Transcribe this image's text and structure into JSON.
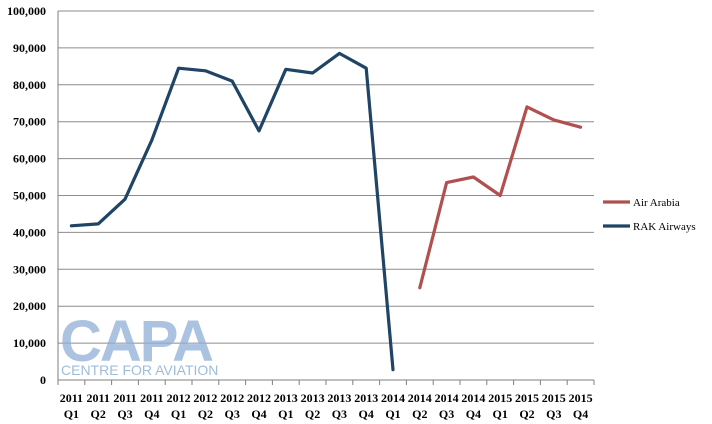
{
  "chart_data": {
    "type": "line",
    "title": "",
    "xlabel": "",
    "ylabel": "",
    "ylim": [
      0,
      100000
    ],
    "yticks": [
      "0",
      "10,000",
      "20,000",
      "30,000",
      "40,000",
      "50,000",
      "60,000",
      "70,000",
      "80,000",
      "90,000",
      "100,000"
    ],
    "grid": "horizontal",
    "legend_position": "right",
    "categories": [
      {
        "year": "2011",
        "quarter": "Q1"
      },
      {
        "year": "2011",
        "quarter": "Q2"
      },
      {
        "year": "2011",
        "quarter": "Q3"
      },
      {
        "year": "2011",
        "quarter": "Q4"
      },
      {
        "year": "2012",
        "quarter": "Q1"
      },
      {
        "year": "2012",
        "quarter": "Q2"
      },
      {
        "year": "2012",
        "quarter": "Q3"
      },
      {
        "year": "2012",
        "quarter": "Q4"
      },
      {
        "year": "2013",
        "quarter": "Q1"
      },
      {
        "year": "2013",
        "quarter": "Q2"
      },
      {
        "year": "2013",
        "quarter": "Q3"
      },
      {
        "year": "2013",
        "quarter": "Q4"
      },
      {
        "year": "2014",
        "quarter": "Q1"
      },
      {
        "year": "2014",
        "quarter": "Q2"
      },
      {
        "year": "2014",
        "quarter": "Q3"
      },
      {
        "year": "2014",
        "quarter": "Q4"
      },
      {
        "year": "2015",
        "quarter": "Q1"
      },
      {
        "year": "2015",
        "quarter": "Q2"
      },
      {
        "year": "2015",
        "quarter": "Q3"
      },
      {
        "year": "2015",
        "quarter": "Q4"
      }
    ],
    "series": [
      {
        "name": "Air Arabia",
        "color": "#b0504f",
        "values": [
          null,
          null,
          null,
          null,
          null,
          null,
          null,
          null,
          null,
          null,
          null,
          null,
          null,
          25000,
          53500,
          55000,
          50000,
          74000,
          70500,
          68500
        ]
      },
      {
        "name": "RAK Airways",
        "color": "#1f4466",
        "values": [
          41800,
          42300,
          49000,
          65000,
          84500,
          83800,
          81000,
          67500,
          84200,
          83200,
          88500,
          84500,
          2800,
          null,
          null,
          null,
          null,
          null,
          null,
          null
        ]
      }
    ]
  },
  "watermark": {
    "logo_text": "CAPA",
    "tagline": "CENTRE FOR AVIATION"
  }
}
